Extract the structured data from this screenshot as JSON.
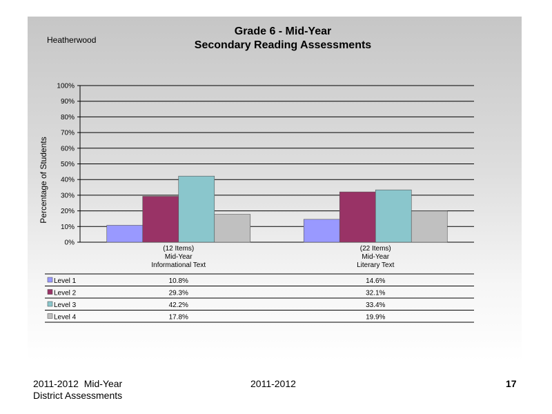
{
  "slide": {
    "school": "Heatherwood",
    "title_line1": "Grade 6 - Mid-Year",
    "title_line2": "Secondary Reading Assessments"
  },
  "footer": {
    "left_line1": "2011-2012  Mid-Year",
    "left_line2": "District Assessments",
    "center": "2011-2012",
    "page_number": "17"
  },
  "chart_data": {
    "type": "bar",
    "title": "Grade 6 - Mid-Year Secondary Reading Assessments",
    "ylabel": "Percentage of Students",
    "ylim": [
      0,
      100
    ],
    "y_ticks": [
      "0%",
      "10%",
      "20%",
      "30%",
      "40%",
      "50%",
      "60%",
      "70%",
      "80%",
      "90%",
      "100%"
    ],
    "grid": true,
    "legend": "data-table",
    "categories": [
      [
        "(12 Items)",
        "Mid-Year",
        "Informational Text"
      ],
      [
        "(22 Items)",
        "Mid-Year",
        "Literary Text"
      ]
    ],
    "series": [
      {
        "name": "Level 1",
        "color": "#9999ff",
        "values": [
          10.8,
          14.6
        ],
        "labels": [
          "10.8%",
          "14.6%"
        ]
      },
      {
        "name": "Level 2",
        "color": "#993366",
        "values": [
          29.3,
          32.1
        ],
        "labels": [
          "29.3%",
          "32.1%"
        ]
      },
      {
        "name": "Level 3",
        "color": "#8ac6cc",
        "values": [
          42.2,
          33.4
        ],
        "labels": [
          "42.2%",
          "33.4%"
        ]
      },
      {
        "name": "Level 4",
        "color": "#c0c0c0",
        "values": [
          17.8,
          19.9
        ],
        "labels": [
          "17.8%",
          "19.9%"
        ]
      }
    ]
  }
}
